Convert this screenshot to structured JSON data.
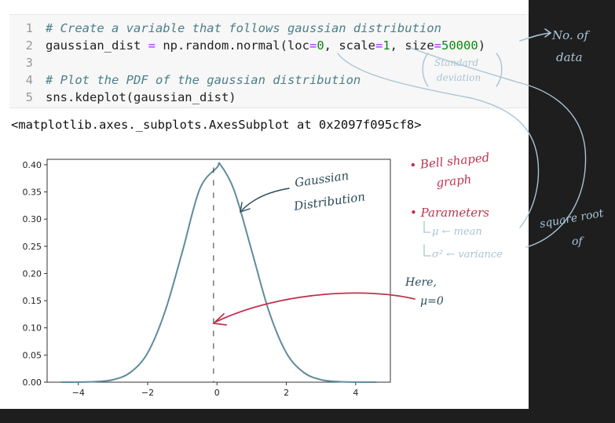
{
  "code": {
    "lines": [
      {
        "n": "1",
        "comment": "# Create a variable that follows gaussian distribution"
      },
      {
        "n": "2",
        "var": "gaussian_dist",
        "eq": " = ",
        "fn": "np.random.normal(loc",
        "eq2": "=",
        "v1": "0",
        "sep1": ", scale",
        "eq3": "=",
        "v2": "1",
        "sep2": ", size",
        "eq4": "=",
        "v3": "50000",
        "close": ")"
      },
      {
        "n": "3"
      },
      {
        "n": "4",
        "comment": "# Plot the PDF of the gaussian distribution"
      },
      {
        "n": "5",
        "code": "sns.kdeplot(gaussian_dist)"
      }
    ]
  },
  "output_text": "<matplotlib.axes._subplots.AxesSubplot at 0x2097f095cf8>",
  "chart_data": {
    "type": "line",
    "x": [
      -4.5,
      -4.0,
      -3.5,
      -3.0,
      -2.5,
      -2.0,
      -1.5,
      -1.0,
      -0.5,
      0.0,
      0.1,
      0.5,
      1.0,
      1.5,
      2.0,
      2.5,
      3.0,
      3.5,
      4.0,
      4.6
    ],
    "y": [
      0.0,
      0.0001,
      0.001,
      0.0045,
      0.018,
      0.054,
      0.13,
      0.24,
      0.355,
      0.395,
      0.4,
      0.352,
      0.242,
      0.13,
      0.054,
      0.018,
      0.0045,
      0.001,
      0.0001,
      0.0
    ],
    "xlim": [
      -4.9,
      5.0
    ],
    "ylim": [
      0,
      0.41
    ],
    "xticks": [
      "−4",
      "−2",
      "0",
      "2",
      "4"
    ],
    "xtick_values": [
      -4,
      -2,
      0,
      2,
      4
    ],
    "yticks": [
      "0.00",
      "0.05",
      "0.10",
      "0.15",
      "0.20",
      "0.25",
      "0.30",
      "0.35",
      "0.40"
    ],
    "ytick_values": [
      0,
      0.05,
      0.1,
      0.15,
      0.2,
      0.25,
      0.3,
      0.35,
      0.4
    ],
    "mean_line_x": -0.1,
    "line_color": "#5f8b9b"
  },
  "annotations": {
    "no_of_data": [
      "No. of",
      "data"
    ],
    "std_dev": [
      "Standard",
      "deviation"
    ],
    "gaussian": [
      "Gaussian",
      "Distribution"
    ],
    "bell": [
      "• Bell shaped",
      "graph"
    ],
    "params": "• Parameters",
    "mu": "μ ← mean",
    "sigma": "σ² ← variance",
    "square_root": [
      "square root",
      "of"
    ],
    "here": [
      "Here,",
      "μ=0"
    ],
    "colors": {
      "blue": "#a9c4d6",
      "red": "#c0324e",
      "ink": "#2a4a5a"
    }
  }
}
